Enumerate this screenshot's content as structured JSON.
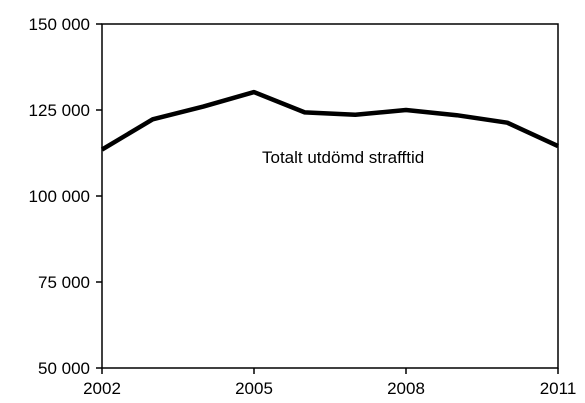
{
  "chart_data": {
    "type": "line",
    "x": [
      2002,
      2003,
      2004,
      2005,
      2006,
      2007,
      2008,
      2009,
      2010,
      2011
    ],
    "series": [
      {
        "name": "Totalt utdömd strafftid",
        "values": [
          113500,
          122300,
          126000,
          130200,
          124300,
          123600,
          125000,
          123500,
          121300,
          114500
        ],
        "color": "#000000"
      }
    ],
    "xlim": [
      2002,
      2011
    ],
    "ylim": [
      50000,
      150000
    ],
    "x_ticks": [
      2002,
      2005,
      2008,
      2011
    ],
    "x_tick_labels": [
      "2002",
      "2005",
      "2008",
      "2011"
    ],
    "y_ticks": [
      50000,
      75000,
      100000,
      125000,
      150000
    ],
    "y_tick_labels": [
      "50 000",
      "75 000",
      "100 000",
      "125 000",
      "150 000"
    ],
    "annotation": "Totalt utdömd strafftid",
    "grid": false,
    "legend": "none",
    "title": "",
    "xlabel": "",
    "ylabel": ""
  }
}
